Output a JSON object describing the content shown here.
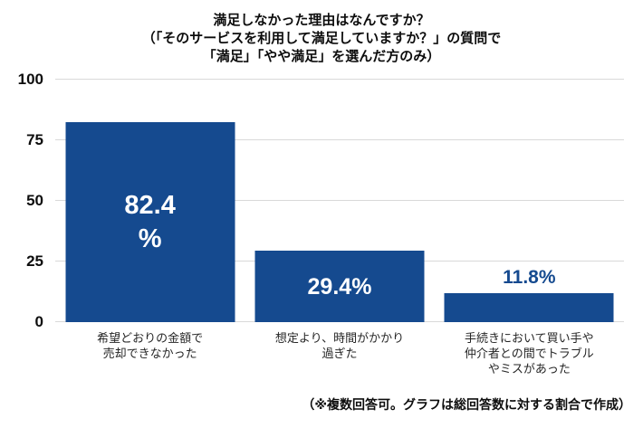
{
  "title": {
    "line1": "満足しなかった理由はなんですか？",
    "line2": "（「そのサービスを利用して満足していますか？」の質問で",
    "line3": "「満足」「やや満足」を選んだ方のみ）"
  },
  "footnote": "（※複数回答可。グラフは総回答数に対する割合で作成）",
  "colors": {
    "bar": "#154a8f",
    "grid": "#d9d9d9",
    "value_label_inside": "#ffffff",
    "value_label_above": "#154a8f",
    "text": "#0d0d0d"
  },
  "chart_data": {
    "type": "bar",
    "title": "満足しなかった理由はなんですか？（「そのサービスを利用して満足していますか？」の質問で「満足」「やや満足」を選んだ方のみ）",
    "categories": [
      "希望どおりの金額で売却できなかった",
      "想定より、時間がかかり過ぎた",
      "手続きにおいて買い手や仲介者との間でトラブルやミスがあった"
    ],
    "category_lines": [
      [
        "希望どおりの金額で",
        "売却できなかった"
      ],
      [
        "想定より、時間がかかり",
        "過ぎた"
      ],
      [
        "手続きにおいて買い手や",
        "仲介者との間でトラブル",
        "やミスがあった"
      ]
    ],
    "values": [
      82.4,
      29.4,
      11.8
    ],
    "value_labels": [
      [
        "82.4",
        "%"
      ],
      [
        "29.4%"
      ],
      [
        "11.8%"
      ]
    ],
    "label_position": [
      "inside",
      "inside",
      "above"
    ],
    "xlabel": "",
    "ylabel": "",
    "ylim": [
      0,
      100
    ],
    "yticks": [
      0,
      25,
      50,
      75,
      100
    ],
    "grid": "horizontal",
    "legend": "none",
    "footnote": "（※複数回答可。グラフは総回答数に対する割合で作成）"
  }
}
